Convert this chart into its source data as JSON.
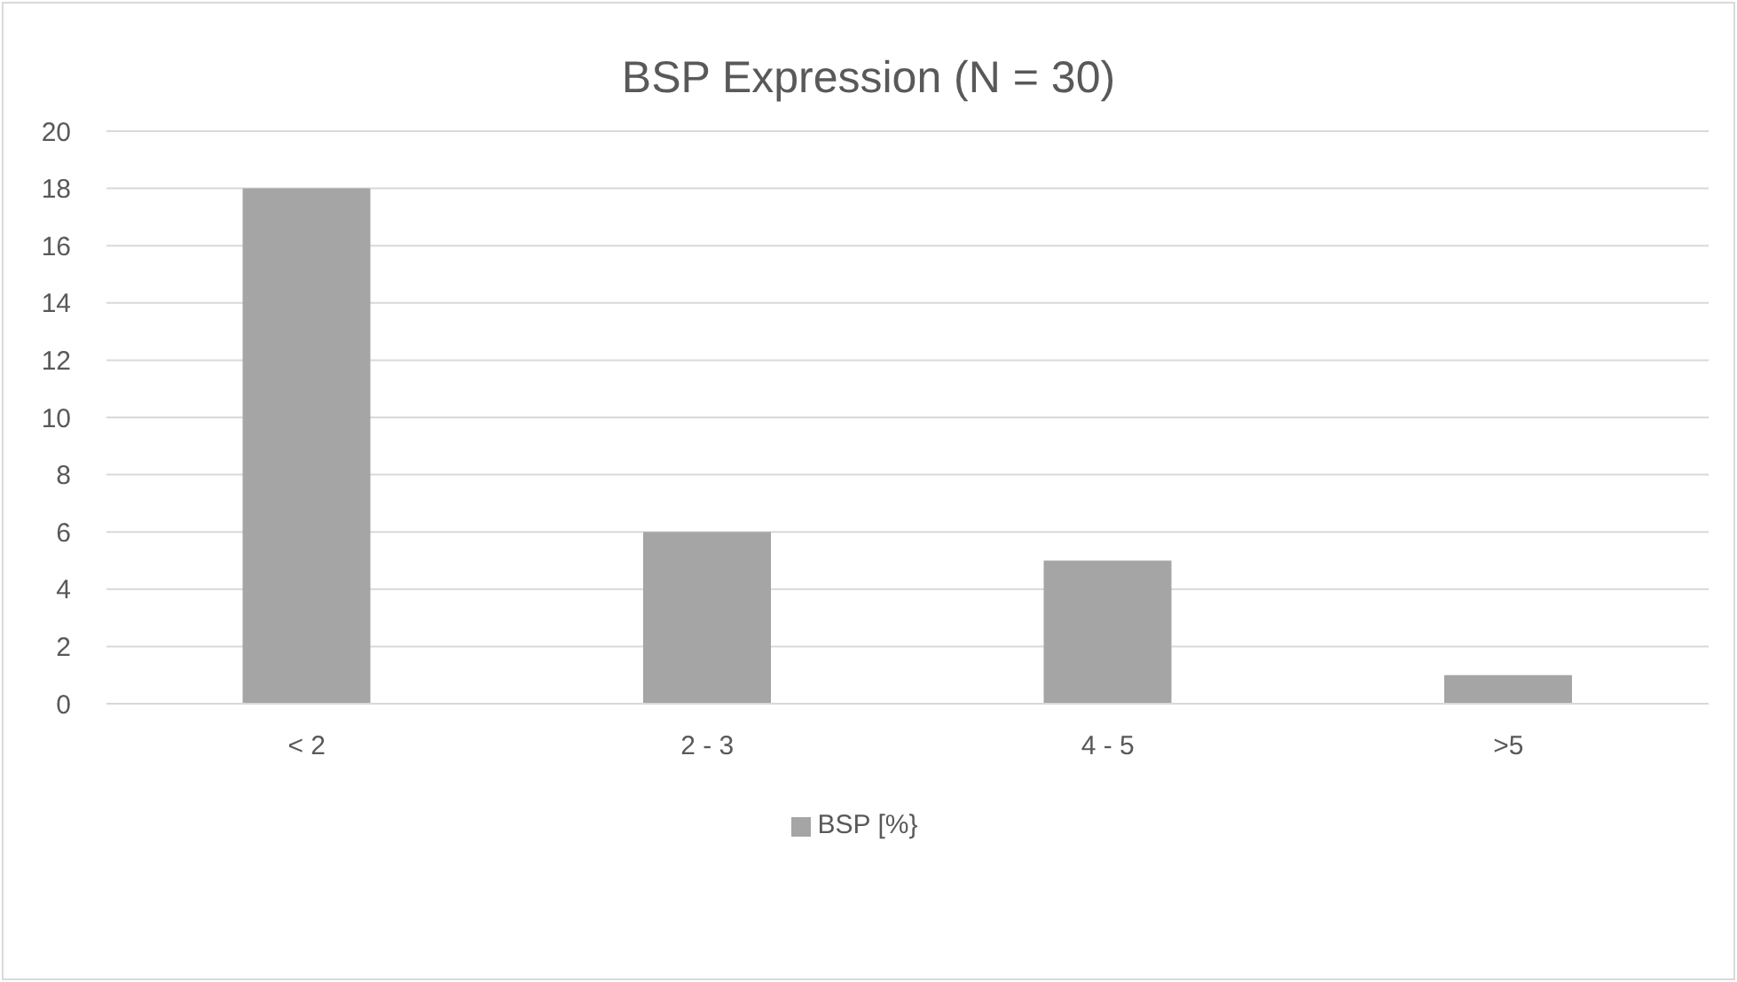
{
  "chart_data": {
    "type": "bar",
    "title": "BSP Expression (N = 30)",
    "categories": [
      "< 2",
      "2 - 3",
      "4 - 5",
      ">5"
    ],
    "series": [
      {
        "name": "BSP [%}",
        "color": "#a5a5a5",
        "values": [
          18,
          6,
          5,
          1
        ]
      }
    ],
    "ylim": [
      0,
      20
    ],
    "yticks": [
      0,
      2,
      4,
      6,
      8,
      10,
      12,
      14,
      16,
      18,
      20
    ],
    "grid": "y",
    "legend": "bottom"
  }
}
